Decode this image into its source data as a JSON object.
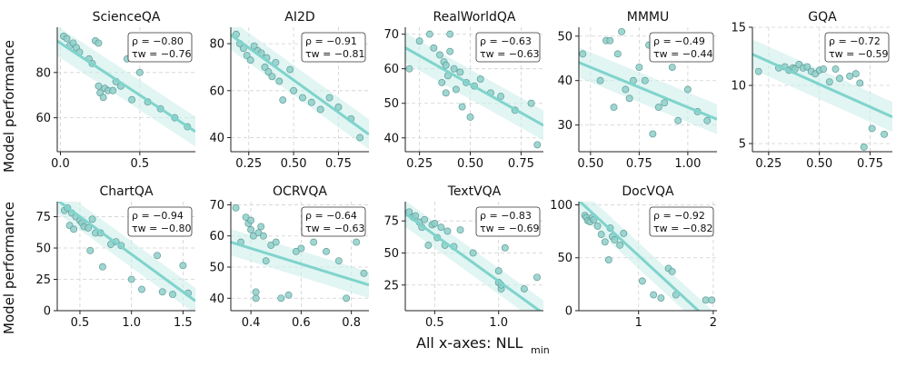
{
  "figure": {
    "ylabel": "Model performance",
    "xlabel_main": "All x-axes: NLL",
    "xlabel_sub": "min",
    "colors": {
      "point": "#8ecfc9",
      "point_edge": "#5f9b97",
      "line": "#7fd4cc",
      "band": "#cdeeeb",
      "grid": "#d0d0d0"
    },
    "rho_label": "ρ",
    "tau_label": "τ",
    "tau_sub": "w"
  },
  "chart_data": [
    {
      "type": "scatter",
      "title": "ScienceQA",
      "xlim": [
        -0.02,
        0.85
      ],
      "ylim": [
        45,
        100
      ],
      "xticks": [
        0,
        0.5
      ],
      "xtick_labels": [
        "0.0",
        "0.5"
      ],
      "yticks": [
        60,
        80
      ],
      "ytick_labels": [
        "60",
        "80"
      ],
      "rho": "ρ = −0.80",
      "tau": "τw = −0.76",
      "fit": [
        93,
        -46
      ],
      "x": [
        0.02,
        0.04,
        0.06,
        0.08,
        0.1,
        0.12,
        0.18,
        0.2,
        0.22,
        0.24,
        0.24,
        0.25,
        0.27,
        0.28,
        0.3,
        0.33,
        0.35,
        0.38,
        0.42,
        0.45,
        0.5,
        0.55,
        0.63,
        0.72,
        0.8
      ],
      "y": [
        96,
        95,
        92,
        93,
        91,
        89,
        86,
        84,
        94,
        93,
        74,
        71,
        69,
        73,
        72,
        72,
        76,
        74,
        86,
        68,
        80,
        67,
        64,
        60,
        56
      ]
    },
    {
      "type": "scatter",
      "title": "AI2D",
      "xlim": [
        0.15,
        0.92
      ],
      "ylim": [
        34,
        87
      ],
      "xticks": [
        0.25,
        0.5,
        0.75
      ],
      "xtick_labels": [
        "0.25",
        "0.50",
        "0.75"
      ],
      "yticks": [
        40,
        60,
        80
      ],
      "ytick_labels": [
        "40",
        "60",
        "80"
      ],
      "rho": "ρ = −0.91",
      "tau": "τw = −0.81",
      "fit": [
        92,
        -55
      ],
      "x": [
        0.18,
        0.2,
        0.22,
        0.24,
        0.26,
        0.28,
        0.3,
        0.32,
        0.34,
        0.35,
        0.36,
        0.38,
        0.4,
        0.42,
        0.44,
        0.48,
        0.5,
        0.55,
        0.6,
        0.65,
        0.7,
        0.75,
        0.82,
        0.87
      ],
      "y": [
        84,
        80,
        78,
        75,
        73,
        79,
        77,
        76,
        70,
        74,
        68,
        66,
        72,
        64,
        56,
        69,
        60,
        57,
        55,
        52,
        57,
        53,
        48,
        40
      ]
    },
    {
      "type": "scatter",
      "title": "RealWorldQA",
      "xlim": [
        0.18,
        0.86
      ],
      "ylim": [
        36,
        72
      ],
      "xticks": [
        0.25,
        0.5,
        0.75
      ],
      "xtick_labels": [
        "0.25",
        "0.50",
        "0.75"
      ],
      "yticks": [
        40,
        50,
        60,
        70
      ],
      "ytick_labels": [
        "40",
        "50",
        "60",
        "70"
      ],
      "rho": "ρ = −0.63",
      "tau": "τw = −0.63",
      "fit": [
        72,
        -33
      ],
      "x": [
        0.2,
        0.25,
        0.3,
        0.32,
        0.35,
        0.36,
        0.37,
        0.38,
        0.38,
        0.39,
        0.4,
        0.4,
        0.42,
        0.43,
        0.45,
        0.46,
        0.48,
        0.5,
        0.52,
        0.55,
        0.6,
        0.65,
        0.72,
        0.8,
        0.83
      ],
      "y": [
        60,
        68,
        70,
        66,
        64,
        56,
        62,
        61,
        53,
        58,
        70,
        65,
        60,
        54,
        59,
        49,
        56,
        46,
        55,
        57,
        53,
        52,
        48,
        50,
        38
      ]
    },
    {
      "type": "scatter",
      "title": "MMMU",
      "xlim": [
        0.44,
        1.15
      ],
      "ylim": [
        24,
        52
      ],
      "xticks": [
        0.5,
        0.75,
        1.0
      ],
      "xtick_labels": [
        "0.50",
        "0.75",
        "1.00"
      ],
      "yticks": [
        30,
        40,
        50
      ],
      "ytick_labels": [
        "30",
        "40",
        "50"
      ],
      "rho": "ρ = −0.49",
      "tau": "τw = −0.44",
      "fit": [
        52,
        -18
      ],
      "x": [
        0.46,
        0.55,
        0.58,
        0.6,
        0.62,
        0.64,
        0.66,
        0.68,
        0.7,
        0.72,
        0.75,
        0.78,
        0.8,
        0.82,
        0.85,
        0.88,
        0.92,
        0.95,
        1.0,
        1.05,
        1.1
      ],
      "y": [
        46,
        40,
        49,
        49,
        34,
        46,
        51,
        38,
        36,
        40,
        43,
        40,
        48,
        28,
        34,
        35,
        43,
        31,
        38,
        33,
        31
      ]
    },
    {
      "type": "scatter",
      "title": "GQA",
      "xlim": [
        0.17,
        0.86
      ],
      "ylim": [
        4.3,
        15
      ],
      "xticks": [
        0.25,
        0.5,
        0.75
      ],
      "xtick_labels": [
        "0.25",
        "0.50",
        "0.75"
      ],
      "yticks": [
        5,
        10,
        15
      ],
      "ytick_labels": [
        "5",
        "10",
        "15"
      ],
      "rho": "ρ = −0.72",
      "tau": "τw = −0.59",
      "fit": [
        14,
        -7.8
      ],
      "x": [
        0.2,
        0.3,
        0.33,
        0.35,
        0.37,
        0.38,
        0.4,
        0.42,
        0.44,
        0.46,
        0.48,
        0.5,
        0.52,
        0.55,
        0.58,
        0.6,
        0.65,
        0.68,
        0.7,
        0.72,
        0.76,
        0.82
      ],
      "y": [
        11.2,
        11.5,
        11.6,
        11.3,
        11.5,
        11.4,
        11.8,
        11.5,
        11.6,
        11.2,
        11.0,
        11.3,
        11.4,
        10.3,
        11.4,
        10.6,
        10.8,
        11.0,
        10.2,
        4.7,
        6.3,
        5.8
      ]
    },
    {
      "type": "scatter",
      "title": "ChartQA",
      "xlim": [
        0.28,
        1.62
      ],
      "ylim": [
        0,
        87
      ],
      "xticks": [
        0.5,
        1.0,
        1.5
      ],
      "xtick_labels": [
        "0.5",
        "1.0",
        "1.5"
      ],
      "yticks": [
        0,
        25,
        50,
        75
      ],
      "ytick_labels": [
        "0",
        "25",
        "50",
        "75"
      ],
      "rho": "ρ = −0.94",
      "tau": "τw = −0.80",
      "fit": [
        105,
        -60
      ],
      "x": [
        0.35,
        0.38,
        0.4,
        0.42,
        0.44,
        0.46,
        0.5,
        0.52,
        0.54,
        0.58,
        0.6,
        0.62,
        0.65,
        0.7,
        0.72,
        0.8,
        0.85,
        0.9,
        1.0,
        1.1,
        1.25,
        1.3,
        1.4,
        1.5,
        1.55
      ],
      "y": [
        80,
        82,
        68,
        78,
        65,
        75,
        72,
        70,
        67,
        66,
        48,
        73,
        62,
        62,
        35,
        53,
        55,
        52,
        25,
        17,
        44,
        15,
        13,
        36,
        14
      ]
    },
    {
      "type": "scatter",
      "title": "OCRVQA",
      "xlim": [
        0.32,
        0.87
      ],
      "ylim": [
        36,
        71
      ],
      "xticks": [
        0.4,
        0.6,
        0.8
      ],
      "xtick_labels": [
        "0.4",
        "0.6",
        "0.8"
      ],
      "yticks": [
        40,
        50,
        60,
        70
      ],
      "ytick_labels": [
        "40",
        "50",
        "60",
        "70"
      ],
      "rho": "ρ = −0.64",
      "tau": "τw = −0.63",
      "fit": [
        66,
        -25
      ],
      "x": [
        0.34,
        0.36,
        0.38,
        0.39,
        0.4,
        0.4,
        0.41,
        0.42,
        0.42,
        0.43,
        0.44,
        0.45,
        0.46,
        0.48,
        0.5,
        0.52,
        0.55,
        0.58,
        0.6,
        0.65,
        0.7,
        0.75,
        0.78,
        0.82,
        0.85
      ],
      "y": [
        69,
        58,
        66,
        64,
        65,
        62,
        60,
        40,
        42,
        61,
        63,
        60,
        52,
        57,
        58,
        40,
        41,
        55,
        56,
        58,
        55,
        52,
        40,
        58,
        48
      ]
    },
    {
      "type": "scatter",
      "title": "TextVQA",
      "xlim": [
        0.27,
        1.35
      ],
      "ylim": [
        5,
        90
      ],
      "xticks": [
        0.5,
        1.0
      ],
      "xtick_labels": [
        "0.5",
        "1.0"
      ],
      "yticks": [
        25,
        50,
        75
      ],
      "ytick_labels": [
        "25",
        "50",
        "75"
      ],
      "rho": "ρ = −0.83",
      "tau": "τw = −0.69",
      "fit": [
        100,
        -72
      ],
      "x": [
        0.3,
        0.33,
        0.35,
        0.38,
        0.4,
        0.42,
        0.45,
        0.48,
        0.5,
        0.52,
        0.55,
        0.58,
        0.6,
        0.65,
        0.7,
        0.8,
        0.9,
        1.0,
        1.0,
        1.02,
        1.02,
        1.05,
        1.2,
        1.3
      ],
      "y": [
        82,
        78,
        79,
        74,
        70,
        76,
        56,
        72,
        73,
        62,
        70,
        56,
        67,
        55,
        68,
        50,
        71,
        36,
        27,
        22,
        25,
        54,
        22,
        31
      ]
    },
    {
      "type": "scatter",
      "title": "DocVQA",
      "xlim": [
        0.2,
        2.05
      ],
      "ylim": [
        0,
        103
      ],
      "xticks": [
        1,
        2
      ],
      "xtick_labels": [
        "1",
        "2"
      ],
      "yticks": [
        0,
        50,
        100
      ],
      "ytick_labels": [
        "0",
        "50",
        "100"
      ],
      "rho": "ρ = −0.92",
      "tau": "τw = −0.82",
      "fit": [
        117,
        -65
      ],
      "x": [
        0.28,
        0.3,
        0.32,
        0.35,
        0.38,
        0.4,
        0.45,
        0.5,
        0.55,
        0.6,
        0.62,
        0.65,
        0.68,
        0.75,
        0.8,
        1.05,
        1.2,
        1.3,
        1.4,
        1.45,
        1.5,
        1.9,
        1.98
      ],
      "y": [
        90,
        88,
        85,
        84,
        88,
        86,
        80,
        72,
        65,
        48,
        78,
        70,
        67,
        62,
        73,
        28,
        15,
        12,
        40,
        37,
        15,
        10,
        10
      ]
    }
  ]
}
